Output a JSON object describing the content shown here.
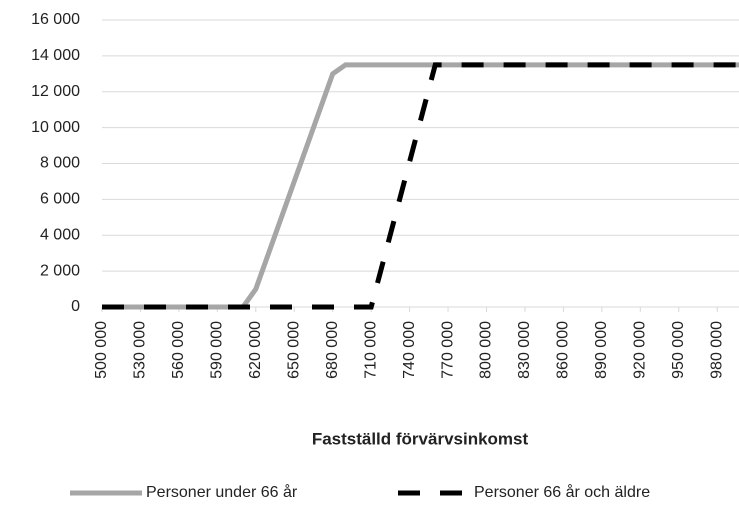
{
  "chart_data": {
    "type": "line",
    "x_label": "Fastställd förvärvsinkomst",
    "xlim": [
      500000,
      997000
    ],
    "xticks": [
      {
        "value": 500000,
        "label": "500 000"
      },
      {
        "value": 530000,
        "label": "530 000"
      },
      {
        "value": 560000,
        "label": "560 000"
      },
      {
        "value": 590000,
        "label": "590 000"
      },
      {
        "value": 620000,
        "label": "620 000"
      },
      {
        "value": 650000,
        "label": "650 000"
      },
      {
        "value": 680000,
        "label": "680 000"
      },
      {
        "value": 710000,
        "label": "710 000"
      },
      {
        "value": 740000,
        "label": "740 000"
      },
      {
        "value": 770000,
        "label": "770 000"
      },
      {
        "value": 800000,
        "label": "800 000"
      },
      {
        "value": 830000,
        "label": "830 000"
      },
      {
        "value": 860000,
        "label": "860 000"
      },
      {
        "value": 890000,
        "label": "890 000"
      },
      {
        "value": 920000,
        "label": "920 000"
      },
      {
        "value": 950000,
        "label": "950 000"
      },
      {
        "value": 980000,
        "label": "980 000"
      }
    ],
    "ylim": [
      0,
      16000
    ],
    "yticks": [
      0,
      {
        "value": 2000,
        "label": "2 000"
      },
      {
        "value": 4000,
        "label": "4 000"
      },
      {
        "value": 6000,
        "label": "6 000"
      },
      {
        "value": 8000,
        "label": "8 000"
      },
      {
        "value": 10000,
        "label": "10 000"
      },
      {
        "value": 12000,
        "label": "12 000"
      },
      {
        "value": 14000,
        "label": "14 000"
      },
      {
        "value": 16000,
        "label": "16 000"
      }
    ],
    "grid": true,
    "series": [
      {
        "name": "Personer under 66 år",
        "color": "#a6a6a6",
        "dash": false,
        "x": [
          500000,
          610000,
          620000,
          680000,
          690000,
          997000
        ],
        "values": [
          0,
          0,
          1000,
          13000,
          13500,
          13500
        ]
      },
      {
        "name": "Personer 66 år och äldre",
        "color": "#000000",
        "dash": true,
        "x": [
          500000,
          710000,
          760000,
          997000
        ],
        "values": [
          0,
          0,
          13500,
          13500
        ]
      }
    ]
  }
}
